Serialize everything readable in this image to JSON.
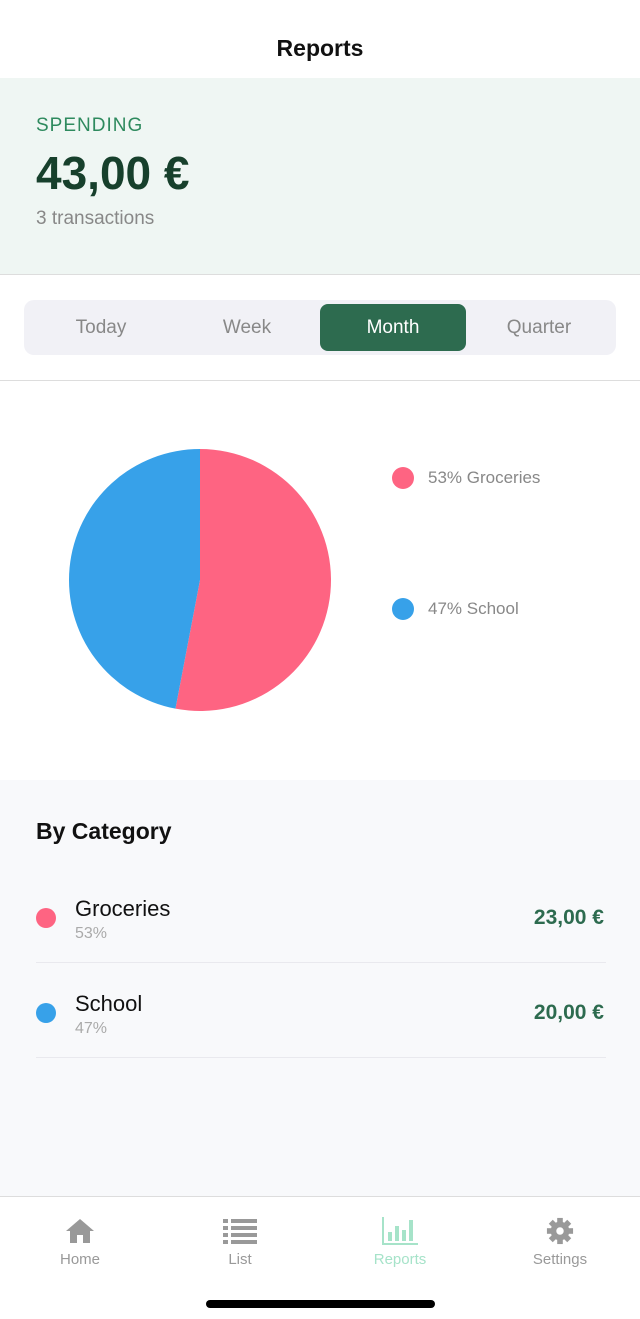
{
  "header": {
    "title": "Reports"
  },
  "summary": {
    "label": "SPENDING",
    "amount": "43,00 €",
    "count": "3 transactions"
  },
  "periods": {
    "items": [
      "Today",
      "Week",
      "Month",
      "Quarter"
    ],
    "selected": "Month"
  },
  "chart_data": {
    "type": "pie",
    "categories": [
      "Groceries",
      "School"
    ],
    "values": [
      53,
      47
    ],
    "colors": [
      "#fe6482",
      "#37a1e9"
    ],
    "legend": [
      {
        "label": "53% Groceries"
      },
      {
        "label": "47% School"
      }
    ],
    "legend_position": "right"
  },
  "categories": {
    "title": "By Category",
    "items": [
      {
        "name": "Groceries",
        "pct": "53%",
        "amount": "23,00 €",
        "color": "#fe6482"
      },
      {
        "name": "School",
        "pct": "47%",
        "amount": "20,00 €",
        "color": "#37a1e9"
      }
    ]
  },
  "tabbar": {
    "items": [
      {
        "label": "Home",
        "icon": "home-icon"
      },
      {
        "label": "List",
        "icon": "list-icon"
      },
      {
        "label": "Reports",
        "icon": "bar-chart-icon"
      },
      {
        "label": "Settings",
        "icon": "gear-icon"
      }
    ],
    "active": "Reports",
    "active_color": "#a6e3c9"
  }
}
